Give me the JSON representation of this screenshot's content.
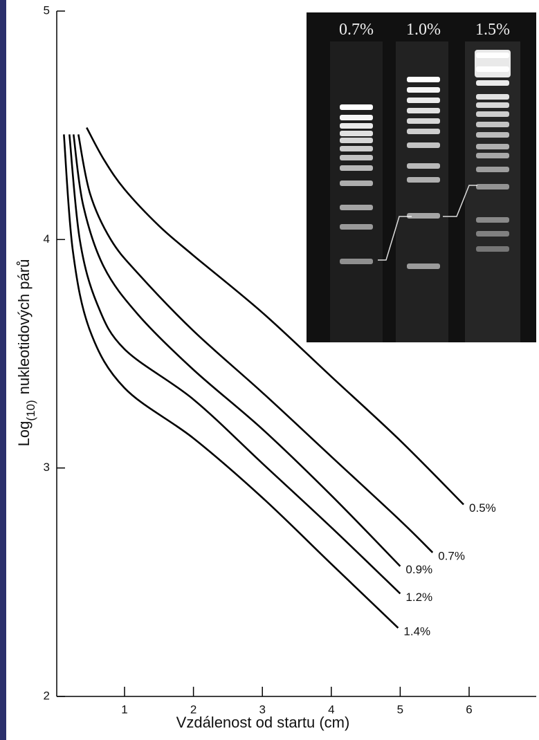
{
  "chart_data": {
    "type": "line",
    "ylabel": [
      "Log",
      "(10)",
      "nukleotidových párů"
    ],
    "xlabel": "Vzdálenost od startu (cm)",
    "xlim": [
      0,
      7
    ],
    "xticks": [
      1,
      2,
      3,
      4,
      5,
      6
    ],
    "ylim": [
      2,
      5
    ],
    "yticks": [
      2,
      3,
      4,
      5
    ],
    "series": [
      {
        "name": "0.5%",
        "color": "#000000",
        "x": [
          0.45,
          0.7,
          1.0,
          1.5,
          2,
          3,
          4,
          5,
          5.92
        ],
        "values": [
          4.49,
          4.35,
          4.22,
          4.06,
          3.93,
          3.68,
          3.4,
          3.12,
          2.84
        ]
      },
      {
        "name": "0.7%",
        "color": "#000000",
        "x": [
          0.33,
          0.5,
          0.8,
          1.2,
          2,
          3,
          4,
          5,
          5.47
        ],
        "values": [
          4.46,
          4.2,
          4.0,
          3.85,
          3.6,
          3.33,
          3.05,
          2.77,
          2.63
        ]
      },
      {
        "name": "0.9%",
        "color": "#000000",
        "x": [
          0.26,
          0.4,
          0.7,
          1.2,
          2,
          3,
          4,
          5
        ],
        "values": [
          4.46,
          4.15,
          3.88,
          3.67,
          3.43,
          3.17,
          2.88,
          2.57
        ]
      },
      {
        "name": "1.2%",
        "color": "#000000",
        "x": [
          0.2,
          0.35,
          0.6,
          1.0,
          2,
          3,
          4,
          5
        ],
        "values": [
          4.46,
          4.0,
          3.72,
          3.52,
          3.3,
          3.02,
          2.74,
          2.45
        ]
      },
      {
        "name": "1.4%",
        "color": "#000000",
        "x": [
          0.12,
          0.25,
          0.5,
          1.0,
          2,
          3,
          4,
          4.97
        ],
        "values": [
          4.46,
          3.95,
          3.6,
          3.35,
          3.13,
          2.87,
          2.58,
          2.3
        ]
      }
    ]
  },
  "inset": {
    "lane_labels": [
      "0.7%",
      "1.0%",
      "1.5%"
    ]
  }
}
